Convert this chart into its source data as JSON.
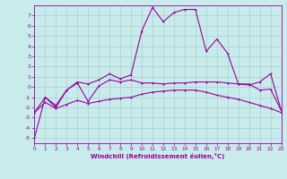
{
  "background_color": "#c8ecec",
  "line_color": "#990099",
  "grid_color": "#aacccc",
  "xlabel": "Windchill (Refroidissement éolien,°C)",
  "xlabel_color": "#990099",
  "ylim": [
    -5.5,
    8.0
  ],
  "xlim": [
    0,
    23
  ],
  "yticks": [
    -5,
    -4,
    -3,
    -2,
    -1,
    0,
    1,
    2,
    3,
    4,
    5,
    6,
    7
  ],
  "xticks": [
    0,
    1,
    2,
    3,
    4,
    5,
    6,
    7,
    8,
    9,
    10,
    11,
    12,
    13,
    14,
    15,
    16,
    17,
    18,
    19,
    20,
    21,
    22,
    23
  ],
  "line1": [
    [
      0,
      -5.0
    ],
    [
      1,
      -1.0
    ],
    [
      2,
      -2.0
    ],
    [
      3,
      -0.3
    ],
    [
      4,
      0.5
    ],
    [
      5,
      0.3
    ],
    [
      6,
      0.7
    ],
    [
      7,
      1.3
    ],
    [
      8,
      0.8
    ],
    [
      9,
      1.2
    ],
    [
      10,
      5.5
    ],
    [
      11,
      7.8
    ],
    [
      12,
      6.4
    ],
    [
      13,
      7.3
    ],
    [
      14,
      7.6
    ],
    [
      15,
      7.6
    ],
    [
      16,
      3.5
    ],
    [
      17,
      4.7
    ],
    [
      18,
      3.3
    ],
    [
      19,
      0.3
    ],
    [
      20,
      0.2
    ],
    [
      21,
      0.5
    ],
    [
      22,
      1.3
    ],
    [
      23,
      -2.3
    ]
  ],
  "line2": [
    [
      0,
      -2.5
    ],
    [
      1,
      -1.0
    ],
    [
      2,
      -1.8
    ],
    [
      3,
      -0.3
    ],
    [
      4,
      0.4
    ],
    [
      5,
      -1.4
    ],
    [
      6,
      0.1
    ],
    [
      7,
      0.7
    ],
    [
      8,
      0.5
    ],
    [
      9,
      0.7
    ],
    [
      10,
      0.4
    ],
    [
      11,
      0.4
    ],
    [
      12,
      0.3
    ],
    [
      13,
      0.4
    ],
    [
      14,
      0.4
    ],
    [
      15,
      0.5
    ],
    [
      16,
      0.5
    ],
    [
      17,
      0.5
    ],
    [
      18,
      0.4
    ],
    [
      19,
      0.3
    ],
    [
      20,
      0.3
    ],
    [
      21,
      -0.3
    ],
    [
      22,
      -0.2
    ],
    [
      23,
      -2.3
    ]
  ],
  "line3": [
    [
      0,
      -2.5
    ],
    [
      1,
      -1.5
    ],
    [
      2,
      -2.1
    ],
    [
      3,
      -1.7
    ],
    [
      4,
      -1.3
    ],
    [
      5,
      -1.6
    ],
    [
      6,
      -1.4
    ],
    [
      7,
      -1.2
    ],
    [
      8,
      -1.1
    ],
    [
      9,
      -1.0
    ],
    [
      10,
      -0.7
    ],
    [
      11,
      -0.5
    ],
    [
      12,
      -0.4
    ],
    [
      13,
      -0.3
    ],
    [
      14,
      -0.3
    ],
    [
      15,
      -0.3
    ],
    [
      16,
      -0.5
    ],
    [
      17,
      -0.8
    ],
    [
      18,
      -1.0
    ],
    [
      19,
      -1.2
    ],
    [
      20,
      -1.5
    ],
    [
      21,
      -1.8
    ],
    [
      22,
      -2.1
    ],
    [
      23,
      -2.5
    ]
  ]
}
